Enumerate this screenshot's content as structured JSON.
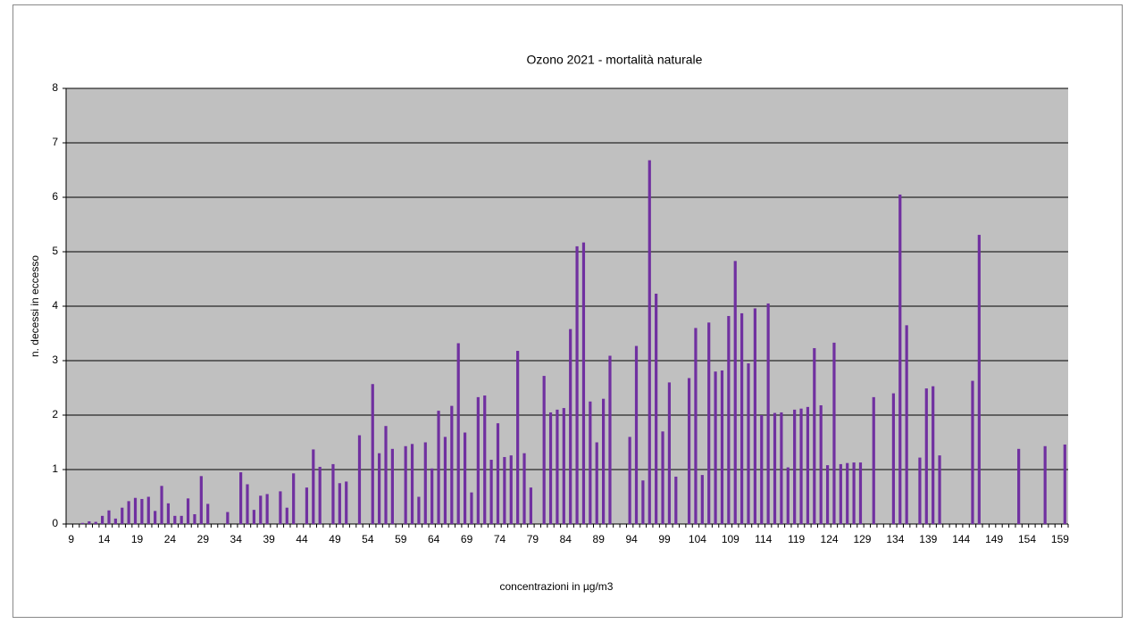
{
  "chart_data": {
    "type": "bar",
    "title": "Ozono 2021 - mortalità  naturale",
    "x_label": "concentrazioni in µg/m3",
    "y_label": "n. decessi in eccesso",
    "color": "#7030a0",
    "grid": true,
    "ylim": [
      0,
      8
    ],
    "yticks": [
      0,
      1,
      2,
      3,
      4,
      5,
      6,
      7,
      8
    ],
    "categories": [
      9,
      null,
      null,
      null,
      null,
      14,
      null,
      null,
      null,
      null,
      19,
      null,
      null,
      null,
      null,
      24,
      null,
      null,
      null,
      null,
      29,
      null,
      null,
      null,
      null,
      34,
      null,
      null,
      null,
      null,
      39,
      null,
      null,
      null,
      null,
      44,
      null,
      null,
      null,
      null,
      49,
      null,
      null,
      null,
      null,
      54,
      null,
      null,
      null,
      null,
      59,
      null,
      null,
      null,
      null,
      64,
      null,
      null,
      null,
      null,
      69,
      null,
      null,
      null,
      null,
      74,
      null,
      null,
      null,
      null,
      79,
      null,
      null,
      null,
      null,
      84,
      null,
      null,
      null,
      null,
      89,
      null,
      null,
      null,
      null,
      94,
      null,
      null,
      null,
      null,
      99,
      null,
      null,
      null,
      null,
      104,
      null,
      null,
      null,
      null,
      109,
      null,
      null,
      null,
      null,
      114,
      null,
      null,
      null,
      null,
      119,
      null,
      null,
      null,
      null,
      124,
      null,
      null,
      null,
      null,
      129,
      null,
      null,
      null,
      null,
      134,
      null,
      null,
      null,
      null,
      139,
      null,
      null,
      null,
      null,
      144,
      null,
      null,
      null,
      null,
      149,
      null,
      null,
      null,
      null,
      154,
      null,
      null,
      null,
      null,
      159,
      null
    ],
    "values": [
      null,
      null,
      0.02,
      0.05,
      0.04,
      0.15,
      0.25,
      0.1,
      0.3,
      0.42,
      0.48,
      0.46,
      0.5,
      0.24,
      0.7,
      0.38,
      0.15,
      0.15,
      0.47,
      0.18,
      0.88,
      0.37,
      null,
      null,
      0.22,
      null,
      0.95,
      0.73,
      0.26,
      0.52,
      0.55,
      null,
      0.6,
      0.3,
      0.93,
      null,
      0.67,
      1.37,
      1.05,
      null,
      1.1,
      0.75,
      0.78,
      null,
      1.63,
      null,
      2.57,
      1.3,
      1.8,
      1.38,
      null,
      1.43,
      1.47,
      0.5,
      1.5,
      1.02,
      2.08,
      1.6,
      2.17,
      3.32,
      1.68,
      0.58,
      2.33,
      2.36,
      1.18,
      1.85,
      1.23,
      1.26,
      3.18,
      1.3,
      0.67,
      null,
      2.72,
      2.05,
      2.1,
      2.13,
      3.58,
      5.1,
      5.17,
      2.25,
      1.5,
      2.3,
      3.09,
      null,
      null,
      1.6,
      3.27,
      0.8,
      6.68,
      4.23,
      1.7,
      2.6,
      0.87,
      null,
      2.68,
      3.6,
      0.9,
      3.7,
      2.8,
      2.82,
      3.82,
      4.83,
      3.87,
      2.95,
      3.96,
      2.0,
      4.05,
      2.04,
      2.05,
      1.04,
      2.1,
      2.12,
      2.15,
      3.23,
      2.18,
      1.08,
      3.33,
      1.1,
      1.12,
      1.13,
      1.13,
      null,
      2.33,
      null,
      null,
      2.4,
      6.05,
      3.65,
      null,
      1.22,
      2.49,
      2.53,
      1.26,
      null,
      null,
      null,
      null,
      2.63,
      5.31,
      null,
      null,
      null,
      null,
      null,
      1.38,
      null,
      null,
      null,
      1.43,
      null,
      null,
      1.46
    ]
  }
}
